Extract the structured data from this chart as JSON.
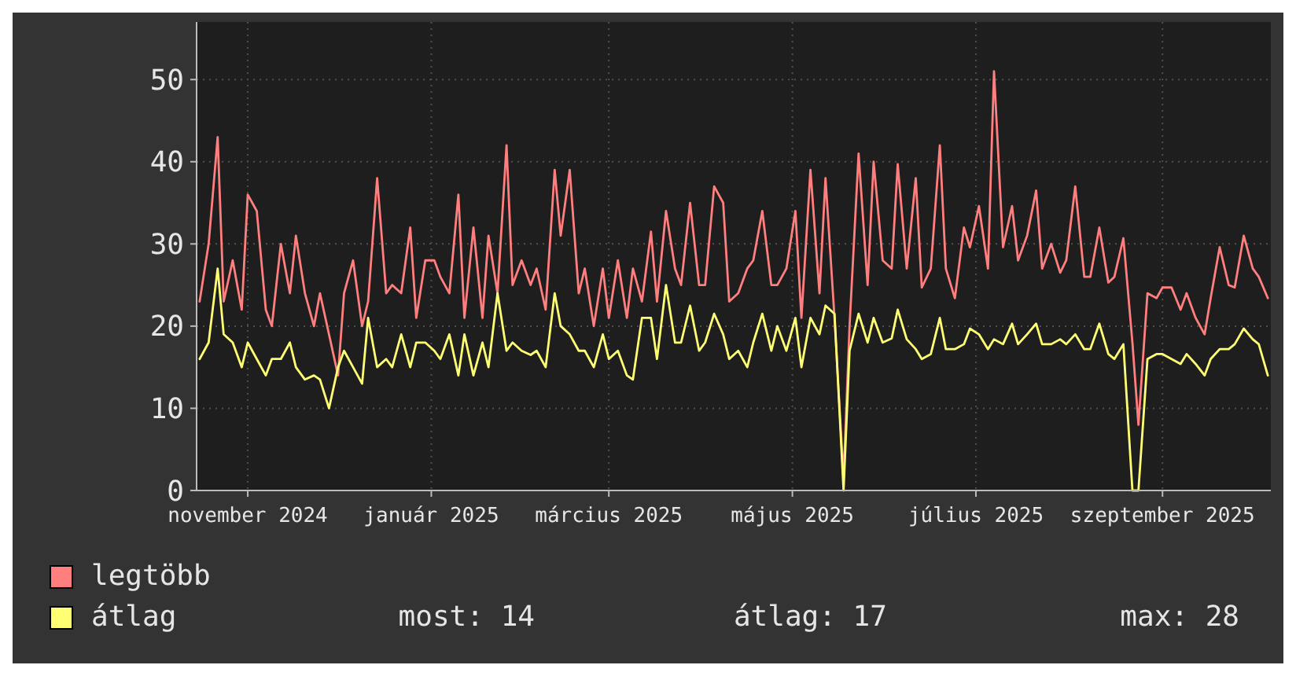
{
  "chart_data": {
    "type": "line",
    "xlim": [
      "2024-10-15",
      "2025-10-07"
    ],
    "ylim": [
      0,
      57
    ],
    "yticks": [
      0,
      10,
      20,
      30,
      40,
      50
    ],
    "xticks": [
      {
        "value": "2024-11-01",
        "label": "november 2024"
      },
      {
        "value": "2025-01-01",
        "label": "január 2025"
      },
      {
        "value": "2025-03-01",
        "label": "március 2025"
      },
      {
        "value": "2025-05-01",
        "label": "május 2025"
      },
      {
        "value": "2025-07-01",
        "label": "július 2025"
      },
      {
        "value": "2025-09-01",
        "label": "szeptember 2025"
      }
    ],
    "grid": true,
    "legend": "bottom",
    "marker": "none",
    "line_style": "solid",
    "x": [
      "2024-10-16",
      "2024-10-19",
      "2024-10-22",
      "2024-10-24",
      "2024-10-27",
      "2024-10-30",
      "2024-11-01",
      "2024-11-04",
      "2024-11-07",
      "2024-11-09",
      "2024-11-12",
      "2024-11-15",
      "2024-11-17",
      "2024-11-20",
      "2024-11-23",
      "2024-11-25",
      "2024-11-28",
      "2024-12-01",
      "2024-12-03",
      "2024-12-06",
      "2024-12-09",
      "2024-12-11",
      "2024-12-14",
      "2024-12-17",
      "2024-12-19",
      "2024-12-22",
      "2024-12-25",
      "2024-12-27",
      "2024-12-30",
      "2025-01-02",
      "2025-01-04",
      "2025-01-07",
      "2025-01-10",
      "2025-01-12",
      "2025-01-15",
      "2025-01-18",
      "2025-01-20",
      "2025-01-23",
      "2025-01-26",
      "2025-01-28",
      "2025-01-31",
      "2025-02-03",
      "2025-02-05",
      "2025-02-08",
      "2025-02-11",
      "2025-02-13",
      "2025-02-16",
      "2025-02-19",
      "2025-02-21",
      "2025-02-24",
      "2025-02-27",
      "2025-03-01",
      "2025-03-04",
      "2025-03-07",
      "2025-03-09",
      "2025-03-12",
      "2025-03-15",
      "2025-03-17",
      "2025-03-20",
      "2025-03-23",
      "2025-03-25",
      "2025-03-28",
      "2025-03-31",
      "2025-04-02",
      "2025-04-05",
      "2025-04-08",
      "2025-04-10",
      "2025-04-13",
      "2025-04-16",
      "2025-04-18",
      "2025-04-21",
      "2025-04-24",
      "2025-04-26",
      "2025-04-29",
      "2025-05-02",
      "2025-05-04",
      "2025-05-07",
      "2025-05-10",
      "2025-05-12",
      "2025-05-15",
      "2025-05-18",
      "2025-05-20",
      "2025-05-23",
      "2025-05-26",
      "2025-05-28",
      "2025-05-31",
      "2025-06-03",
      "2025-06-05",
      "2025-06-08",
      "2025-06-11",
      "2025-06-13",
      "2025-06-16",
      "2025-06-19",
      "2025-06-21",
      "2025-06-24",
      "2025-06-27",
      "2025-06-29",
      "2025-07-02",
      "2025-07-05",
      "2025-07-07",
      "2025-07-10",
      "2025-07-13",
      "2025-07-15",
      "2025-07-18",
      "2025-07-21",
      "2025-07-23",
      "2025-07-26",
      "2025-07-29",
      "2025-07-31",
      "2025-08-03",
      "2025-08-06",
      "2025-08-08",
      "2025-08-11",
      "2025-08-14",
      "2025-08-16",
      "2025-08-19",
      "2025-08-22",
      "2025-08-24",
      "2025-08-27",
      "2025-08-30",
      "2025-09-01",
      "2025-09-04",
      "2025-09-07",
      "2025-09-09",
      "2025-09-12",
      "2025-09-15",
      "2025-09-17",
      "2025-09-20",
      "2025-09-23",
      "2025-09-25",
      "2025-09-28",
      "2025-10-01",
      "2025-10-03",
      "2025-10-06"
    ],
    "series": [
      {
        "name": "legtöbb",
        "color": "#ff7f7f",
        "values": [
          23,
          30,
          43,
          23,
          28,
          22,
          36,
          34,
          22,
          20,
          30,
          24,
          31,
          24,
          20,
          24,
          19,
          14,
          24,
          28,
          20,
          23,
          38,
          24,
          25,
          24,
          32,
          21,
          28,
          28,
          26,
          24,
          36,
          21,
          32,
          21,
          31,
          24,
          42,
          25,
          28,
          25,
          27,
          22,
          39,
          31,
          39,
          24,
          27,
          20,
          27,
          21,
          28,
          21,
          27,
          23,
          31.5,
          23,
          34,
          27,
          25,
          35,
          25,
          25,
          37,
          35,
          23,
          24,
          27,
          28,
          34,
          25,
          25,
          27,
          34,
          21,
          39,
          24,
          38,
          21,
          1.5,
          20,
          41,
          25,
          40,
          28,
          27,
          39.7,
          27,
          38,
          24.7,
          27,
          42,
          27,
          23.4,
          32,
          29.6,
          34.6,
          27,
          51,
          29.6,
          34.6,
          28,
          31,
          36.5,
          27,
          30,
          26.5,
          28,
          37,
          26,
          26,
          32,
          25.3,
          26,
          30.7,
          18,
          8,
          24,
          23.4,
          24.7,
          24.7,
          22,
          24,
          21,
          19,
          23.4,
          29.6,
          25,
          24.7,
          31,
          27,
          26,
          23.4
        ]
      },
      {
        "name": "átlag",
        "color": "#ffff73",
        "values": [
          16,
          18,
          27,
          19,
          18,
          15,
          18,
          16,
          14,
          16,
          16,
          18,
          15,
          13.5,
          14,
          13.5,
          10,
          15,
          17,
          15,
          13,
          21,
          15,
          16,
          15,
          19,
          15,
          18,
          18,
          17,
          16,
          19,
          14,
          19,
          14,
          18,
          15,
          24,
          17,
          18,
          17,
          16.5,
          17,
          15,
          24,
          20,
          19,
          17,
          17,
          15,
          19,
          16,
          17,
          14,
          13.5,
          21,
          21,
          16,
          25,
          18,
          18,
          22.5,
          17,
          18,
          21.5,
          19,
          16,
          17,
          15,
          18,
          21.5,
          17,
          20,
          17,
          21,
          15,
          21,
          19,
          22.5,
          21.5,
          0,
          17,
          21.5,
          18,
          21,
          18,
          18.5,
          22,
          18.4,
          17.2,
          16,
          16.6,
          21,
          17.2,
          17.2,
          17.8,
          19.7,
          19,
          17.2,
          18.4,
          17.8,
          20.3,
          17.8,
          19,
          20.3,
          17.8,
          17.8,
          18.4,
          17.8,
          19,
          17.2,
          17.2,
          20.3,
          16.6,
          16,
          17.8,
          0,
          0,
          16,
          16.6,
          16.6,
          16,
          15.4,
          16.6,
          15.4,
          14,
          16,
          17.2,
          17.2,
          17.8,
          19.7,
          18.4,
          17.8,
          14
        ]
      }
    ],
    "annotations": [
      "most: 14",
      "átlag: 17",
      "max: 28"
    ]
  }
}
